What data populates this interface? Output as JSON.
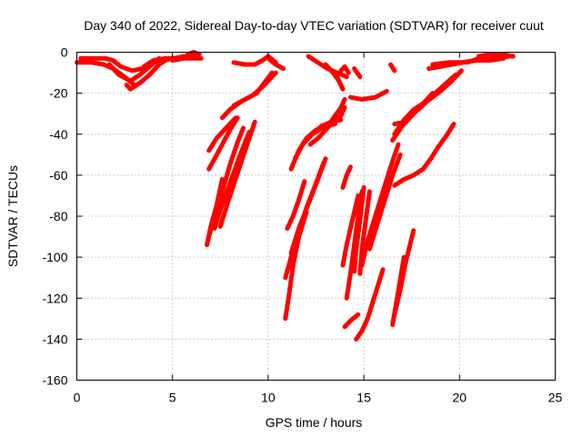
{
  "chart_data": {
    "type": "scatter",
    "title": "Day 340 of 2022, Sidereal Day-to-day VTEC variation (SDTVAR) for receiver cuut",
    "xlabel": "GPS time / hours",
    "ylabel": "SDTVAR / TECUs",
    "xlim": [
      0,
      25
    ],
    "ylim": [
      -160,
      0
    ],
    "xticks": [
      0,
      5,
      10,
      15,
      20,
      25
    ],
    "yticks": [
      0,
      -20,
      -40,
      -60,
      -80,
      -100,
      -120,
      -140,
      -160
    ],
    "grid": true,
    "marker": "plus",
    "color": "#ff0000",
    "series": [
      {
        "x": [
          0.0,
          0.8,
          1.4,
          1.9,
          2.5,
          3.0
        ],
        "y": [
          -5,
          -5,
          -6,
          -8,
          -12,
          -16
        ]
      },
      {
        "x": [
          2.6,
          2.8,
          3.3,
          3.8,
          4.3,
          4.8
        ],
        "y": [
          -16,
          -18,
          -15,
          -11,
          -6,
          -3
        ]
      },
      {
        "x": [
          1.7,
          2.2,
          2.8,
          3.3,
          3.8,
          4.3
        ],
        "y": [
          -6,
          -11,
          -14,
          -11,
          -7,
          -3
        ]
      },
      {
        "x": [
          0.2,
          0.8,
          1.5,
          1.9,
          2.3,
          2.9,
          3.4,
          4.0,
          5.0,
          5.8,
          6.2
        ],
        "y": [
          -3,
          -3,
          -3,
          -4,
          -7,
          -9,
          -8,
          -5,
          -3,
          -2,
          -1
        ]
      },
      {
        "x": [
          3.5,
          4.0,
          4.6,
          5.1,
          5.6
        ],
        "y": [
          -7,
          -4,
          -3,
          -3,
          -2
        ]
      },
      {
        "x": [
          5.0,
          5.6,
          6.1,
          6.5
        ],
        "y": [
          -4,
          -3,
          -3,
          -3
        ]
      },
      {
        "x": [
          5.8,
          6.1,
          6.4
        ],
        "y": [
          -1,
          0,
          -1
        ]
      },
      {
        "x": [
          6.8,
          7.0,
          7.3,
          7.6
        ],
        "y": [
          -94,
          -85,
          -75,
          -62
        ]
      },
      {
        "x": [
          6.9,
          7.2,
          7.6,
          8.0,
          8.4,
          8.7
        ],
        "y": [
          -90,
          -80,
          -68,
          -55,
          -44,
          -37
        ]
      },
      {
        "x": [
          7.2,
          7.5,
          8.0,
          8.5,
          9.0
        ],
        "y": [
          -86,
          -77,
          -64,
          -51,
          -39
        ]
      },
      {
        "x": [
          7.5,
          7.9,
          8.4,
          8.9,
          9.3
        ],
        "y": [
          -85,
          -73,
          -59,
          -45,
          -34
        ]
      },
      {
        "x": [
          6.9,
          7.2,
          7.6,
          8.0,
          8.4
        ],
        "y": [
          -57,
          -52,
          -45,
          -38,
          -32
        ]
      },
      {
        "x": [
          6.9,
          7.3,
          7.8,
          8.3
        ],
        "y": [
          -48,
          -42,
          -37,
          -32
        ]
      },
      {
        "x": [
          7.6,
          8.0,
          8.6,
          9.2,
          9.8,
          10.4
        ],
        "y": [
          -32,
          -28,
          -24,
          -21,
          -16,
          -10
        ]
      },
      {
        "x": [
          8.2,
          8.6,
          9.0,
          9.4,
          9.8,
          10.2
        ],
        "y": [
          -26,
          -24,
          -22,
          -20,
          -15,
          -10
        ]
      },
      {
        "x": [
          8.2,
          8.8,
          9.3,
          9.7,
          10.0,
          10.4
        ],
        "y": [
          -5,
          -6,
          -6,
          -4,
          -2,
          -5
        ]
      },
      {
        "x": [
          10.0,
          10.4,
          10.8
        ],
        "y": [
          -3,
          -6,
          -8
        ]
      },
      {
        "x": [
          10.9,
          11.1,
          11.3,
          11.6,
          12.0
        ],
        "y": [
          -130,
          -118,
          -104,
          -90,
          -78
        ]
      },
      {
        "x": [
          10.9,
          11.2,
          11.6,
          12.0,
          12.5,
          12.9
        ],
        "y": [
          -110,
          -100,
          -88,
          -76,
          -64,
          -54
        ]
      },
      {
        "x": [
          11.2,
          11.6,
          12.1,
          12.6,
          13.0
        ],
        "y": [
          -98,
          -86,
          -74,
          -62,
          -52
        ]
      },
      {
        "x": [
          11.0,
          11.3,
          11.6,
          11.9
        ],
        "y": [
          -86,
          -80,
          -72,
          -63
        ]
      },
      {
        "x": [
          11.2,
          11.6,
          12.0,
          12.5,
          13.0,
          13.5
        ],
        "y": [
          -57,
          -48,
          -42,
          -38,
          -36,
          -35
        ]
      },
      {
        "x": [
          11.4,
          11.8,
          12.3,
          12.8,
          13.3,
          13.8
        ],
        "y": [
          -52,
          -45,
          -40,
          -36,
          -34,
          -33
        ]
      },
      {
        "x": [
          11.8,
          12.3,
          12.8,
          13.3,
          13.8,
          14.0
        ],
        "y": [
          -45,
          -40,
          -37,
          -35,
          -31,
          -27
        ]
      },
      {
        "x": [
          12.2,
          12.6,
          13.0,
          13.4
        ],
        "y": [
          -45,
          -42,
          -38,
          -34
        ]
      },
      {
        "x": [
          13.2,
          13.5,
          13.8,
          14.0
        ],
        "y": [
          -35,
          -31,
          -27,
          -23
        ]
      },
      {
        "x": [
          12.1,
          12.6,
          13.1,
          13.6,
          14.1
        ],
        "y": [
          -2,
          -5,
          -8,
          -10,
          -12
        ]
      },
      {
        "x": [
          13.0,
          13.4,
          13.7
        ],
        "y": [
          -6,
          -10,
          -14
        ]
      },
      {
        "x": [
          13.5,
          13.7,
          13.9
        ],
        "y": [
          -10,
          -14,
          -18
        ]
      },
      {
        "x": [
          13.8,
          14.0,
          14.2
        ],
        "y": [
          -9,
          -7,
          -10
        ]
      },
      {
        "x": [
          14.5,
          14.8
        ],
        "y": [
          -8,
          -12
        ]
      },
      {
        "x": [
          14.3,
          14.9,
          15.6,
          16.2
        ],
        "y": [
          -22,
          -23,
          -22,
          -19
        ]
      },
      {
        "x": [
          13.9,
          14.1,
          14.3
        ],
        "y": [
          -66,
          -60,
          -56
        ]
      },
      {
        "x": [
          14.1,
          14.3,
          14.5,
          14.7,
          14.9
        ],
        "y": [
          -120,
          -108,
          -94,
          -80,
          -68
        ]
      },
      {
        "x": [
          14.5,
          14.6,
          14.8,
          15.0
        ],
        "y": [
          -107,
          -96,
          -82,
          -66
        ]
      },
      {
        "x": [
          14.8,
          14.9,
          15.1,
          15.3
        ],
        "y": [
          -108,
          -96,
          -82,
          -68
        ]
      },
      {
        "x": [
          13.9,
          14.1,
          14.4,
          14.7
        ],
        "y": [
          -104,
          -94,
          -82,
          -70
        ]
      },
      {
        "x": [
          14.9,
          15.2,
          15.6,
          16.0,
          16.4,
          16.8
        ],
        "y": [
          -104,
          -92,
          -80,
          -68,
          -56,
          -45
        ]
      },
      {
        "x": [
          15.3,
          15.7,
          16.1,
          16.5,
          16.9
        ],
        "y": [
          -96,
          -84,
          -72,
          -60,
          -50
        ]
      },
      {
        "x": [
          14.0,
          14.3,
          14.7
        ],
        "y": [
          -134,
          -131,
          -128
        ]
      },
      {
        "x": [
          14.6,
          14.9,
          15.2,
          15.4,
          15.6,
          15.8,
          16.0
        ],
        "y": [
          -140,
          -136,
          -130,
          -124,
          -118,
          -112,
          -106
        ]
      },
      {
        "x": [
          16.5,
          16.7,
          16.9,
          17.1
        ],
        "y": [
          -133,
          -122,
          -111,
          -100
        ]
      },
      {
        "x": [
          16.6,
          16.9,
          17.2,
          17.6
        ],
        "y": [
          -128,
          -116,
          -102,
          -87
        ]
      },
      {
        "x": [
          16.5,
          17.0,
          17.6,
          18.3,
          19.0,
          19.6,
          20.1
        ],
        "y": [
          -43,
          -36,
          -30,
          -24,
          -19,
          -14,
          -9
        ]
      },
      {
        "x": [
          16.6,
          17.1,
          17.6,
          18.1,
          18.6
        ],
        "y": [
          -40,
          -33,
          -28,
          -25,
          -20
        ]
      },
      {
        "x": [
          16.6,
          17.2,
          17.8,
          18.5,
          19.2,
          19.8
        ],
        "y": [
          -35,
          -34,
          -28,
          -22,
          -16,
          -11
        ]
      },
      {
        "x": [
          16.6,
          17.1,
          17.6,
          18.1
        ],
        "y": [
          -65,
          -62,
          -60,
          -57
        ]
      },
      {
        "x": [
          18.1,
          18.5,
          18.9,
          19.3,
          19.7
        ],
        "y": [
          -57,
          -52,
          -46,
          -41,
          -35
        ]
      },
      {
        "x": [
          16.4,
          16.6
        ],
        "y": [
          -6,
          -9
        ]
      },
      {
        "x": [
          18.4,
          19.0,
          19.6,
          20.2,
          20.8,
          21.4,
          22.0,
          22.6
        ],
        "y": [
          -8,
          -7,
          -6,
          -5,
          -4,
          -3,
          -3,
          -2
        ]
      },
      {
        "x": [
          18.6,
          19.4,
          20.1,
          20.9,
          21.6,
          22.3
        ],
        "y": [
          -6,
          -5,
          -5,
          -4,
          -4,
          -3
        ]
      },
      {
        "x": [
          20.4,
          21.0,
          21.6,
          22.2,
          22.8
        ],
        "y": [
          -5,
          -3,
          -2,
          -1,
          -2
        ]
      },
      {
        "x": [
          21.0,
          21.6,
          22.2,
          22.8
        ],
        "y": [
          -2,
          -1,
          -1,
          -2
        ]
      }
    ]
  }
}
